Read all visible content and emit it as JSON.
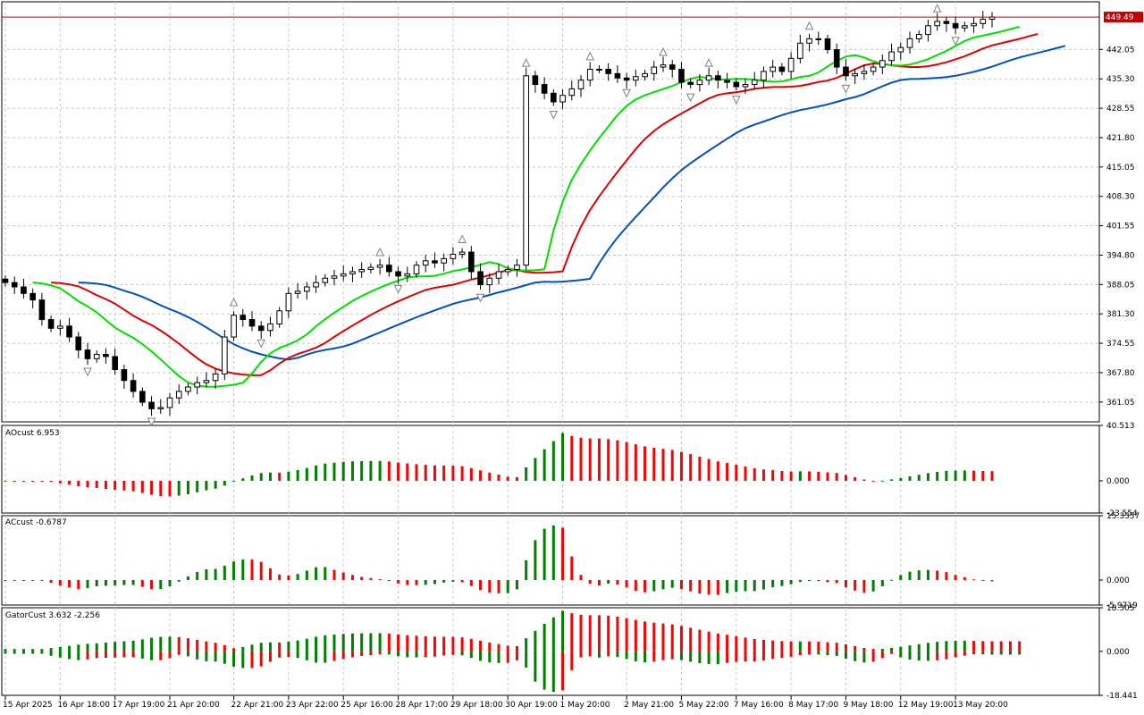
{
  "colors": {
    "bull": "#008000",
    "bear": "#ff0000",
    "lips": "#00e000",
    "teeth": "#e00000",
    "jaw": "#0050c0",
    "grid": "#c8c8c8",
    "price_line": "#c00000",
    "price_label_bg": "#c00000",
    "fractal": "#808080"
  },
  "main_pane": {
    "price_label": "449.49",
    "y_ticks": [
      "442.05",
      "435.30",
      "428.55",
      "421.80",
      "415.05",
      "408.30",
      "401.55",
      "394.80",
      "388.05",
      "381.30",
      "374.55",
      "367.80",
      "361.05"
    ]
  },
  "ao_pane": {
    "label": "AOcust 6.953",
    "y_ticks": [
      "40.513",
      "0.000",
      "-23.554"
    ]
  },
  "ac_pane": {
    "label": "ACcust -0.6787",
    "y_ticks": [
      "15.3357",
      "0.000",
      "-5.9719"
    ]
  },
  "gator_pane": {
    "label": "GatorCust 3.632 -2.256",
    "y_ticks": [
      "18.305",
      "0.000",
      "-18.441"
    ]
  },
  "x_labels": [
    "15 Apr 2025",
    "16 Apr 18:00",
    "17 Apr 19:00",
    "21 Apr 20:00",
    "22 Apr 21:00",
    "23 Apr 22:00",
    "25 Apr 16:00",
    "28 Apr 17:00",
    "29 Apr 18:00",
    "30 Apr 19:00",
    "1 May 20:00",
    "2 May 21:00",
    "5 May 22:00",
    "7 May 16:00",
    "8 May 17:00",
    "9 May 18:00",
    "12 May 19:00",
    "13 May 20:00"
  ],
  "chart_data": {
    "type": "candlestick",
    "instrument_note": "",
    "main_price_range": [
      356.5,
      453.0
    ],
    "closes_approx": [
      388.5,
      387.5,
      386.0,
      384.5,
      380.0,
      378.0,
      378.5,
      376.0,
      373.0,
      371.0,
      372.0,
      371.5,
      368.5,
      366.0,
      363.5,
      361.0,
      359.5,
      359.8,
      362.0,
      363.5,
      364.5,
      365.5,
      366.0,
      367.5,
      376.0,
      381.0,
      380.0,
      378.5,
      377.5,
      379.0,
      382.0,
      386.0,
      386.5,
      387.5,
      388.5,
      389.5,
      390.0,
      390.5,
      391.0,
      391.5,
      392.0,
      392.5,
      391.0,
      390.0,
      390.5,
      392.5,
      393.5,
      393.0,
      394.0,
      395.0,
      395.5,
      391.0,
      388.0,
      389.5,
      391.0,
      391.5,
      392.5,
      436.0,
      434.0,
      432.0,
      430.0,
      431.5,
      433.0,
      435.0,
      437.5,
      437.5,
      436.5,
      435.5,
      435.0,
      435.8,
      436.5,
      438.0,
      438.5,
      437.5,
      434.5,
      434.0,
      435.0,
      436.0,
      435.0,
      434.5,
      433.5,
      434.0,
      435.0,
      437.0,
      438.0,
      437.0,
      440.0,
      443.5,
      444.5,
      444.5,
      442.0,
      438.0,
      436.0,
      436.5,
      437.0,
      438.0,
      439.5,
      441.5,
      442.5,
      444.5,
      445.5,
      447.5,
      448.5,
      448.0,
      447.0,
      447.5,
      448.0,
      449.0,
      449.5
    ],
    "ao_range": [
      -23.554,
      40.513
    ],
    "ac_range": [
      -5.9719,
      15.3357
    ],
    "gator_range": [
      -18.441,
      18.305
    ]
  }
}
